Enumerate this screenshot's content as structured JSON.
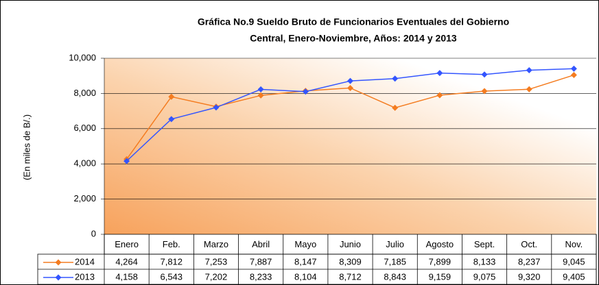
{
  "chart_data": {
    "type": "line",
    "title": [
      "Gráfica No.9 Sueldo Bruto de Funcionarios Eventuales del Gobierno",
      "Central, Enero-Noviembre, Años: 2014 y 2013"
    ],
    "y_label": "(En miles de B/.)",
    "categories": [
      "Enero",
      "Feb.",
      "Marzo",
      "Abril",
      "Mayo",
      "Junio",
      "Julio",
      "Agosto",
      "Sept.",
      "Oct.",
      "Nov."
    ],
    "series": [
      {
        "name": "2014",
        "color": "#f47c20",
        "values": [
          4264,
          7812,
          7253,
          7887,
          8147,
          8309,
          7185,
          7899,
          8133,
          8237,
          9045
        ],
        "value_labels": [
          "4,264",
          "7,812",
          "7,253",
          "7,887",
          "8,147",
          "8,309",
          "7,185",
          "7,899",
          "8,133",
          "8,237",
          "9,045"
        ]
      },
      {
        "name": "2013",
        "color": "#3355ff",
        "values": [
          4158,
          6543,
          7202,
          8233,
          8104,
          8712,
          8843,
          9159,
          9075,
          9320,
          9405
        ],
        "value_labels": [
          "4,158",
          "6,543",
          "7,202",
          "8,233",
          "8,104",
          "8,712",
          "8,843",
          "9,159",
          "9,075",
          "9,320",
          "9,405"
        ]
      }
    ],
    "ylim": [
      0,
      10000
    ],
    "yticks": [
      0,
      {
        "value": 2000,
        "label": "2,000"
      },
      {
        "value": 4000,
        "label": "4,000"
      },
      {
        "value": 6000,
        "label": "6,000"
      },
      {
        "value": 8000,
        "label": "8,000"
      },
      {
        "value": 10000,
        "label": "10,000"
      }
    ],
    "grid": true
  }
}
